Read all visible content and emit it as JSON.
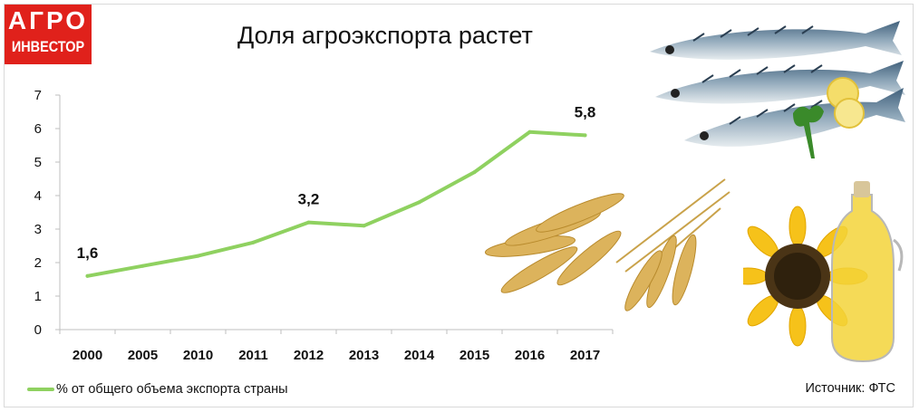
{
  "logo": {
    "line1": "АГРО",
    "line2": "ИНВЕСТОР"
  },
  "title": "Доля агроэкспорта растет",
  "legend_label": "% от общего объема экспорта страны",
  "source": "Источник: ФТС",
  "colors": {
    "line": "#8fd160",
    "logo": "#e0211b",
    "axis": "#bfbfbf"
  },
  "images": [
    "mackerel-fish-image",
    "wheat-ears-image",
    "sunflower-oil-image"
  ],
  "chart_data": {
    "type": "line",
    "categories": [
      "2000",
      "2005",
      "2010",
      "2011",
      "2012",
      "2013",
      "2014",
      "2015",
      "2016",
      "2017"
    ],
    "series": [
      {
        "name": "% от общего объема экспорта страны",
        "values": [
          1.6,
          1.9,
          2.2,
          2.6,
          3.2,
          3.1,
          3.8,
          4.7,
          5.9,
          5.8
        ]
      }
    ],
    "data_labels": [
      {
        "index": 0,
        "text": "1,6"
      },
      {
        "index": 4,
        "text": "3,2"
      },
      {
        "index": 9,
        "text": "5,8"
      }
    ],
    "yticks": [
      "0",
      "1",
      "2",
      "3",
      "4",
      "5",
      "6",
      "7"
    ],
    "ylim": [
      0,
      7
    ],
    "grid": false,
    "legend_position": "bottom-left"
  }
}
